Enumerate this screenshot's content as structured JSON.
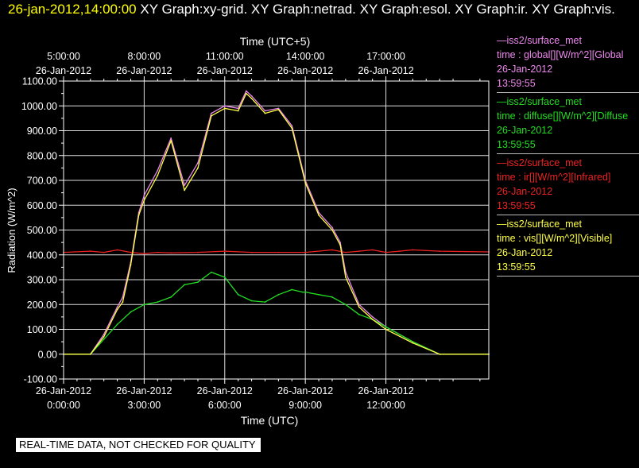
{
  "header": {
    "timestamp": "26-jan-2012,14:00:00",
    "description": "XY Graph:xy-grid.  XY Graph:netrad.  XY Graph:esol.  XY Graph:ir.  XY Graph:vis."
  },
  "footer": {
    "text": "REAL-TIME DATA, NOT CHECKED FOR QUALITY"
  },
  "legend": [
    {
      "title": "—iss2/surface_met",
      "var": "time : global[][W/m^2][Global",
      "date": "26-Jan-2012",
      "time": "13:59:55",
      "color": "#ee88ee"
    },
    {
      "title": "—iss2/surface_met",
      "var": "time : diffuse[][W/m^2][Diffuse",
      "date": "26-Jan-2012",
      "time": "13:59:55",
      "color": "#22dd22"
    },
    {
      "title": "—iss2/surface_met",
      "var": "time : ir[][W/m^2][Infrared]",
      "date": "26-Jan-2012",
      "time": "13:59:55",
      "color": "#ee2222"
    },
    {
      "title": "—iss2/surface_met",
      "var": "time : vis[][W/m^2][Visible]",
      "date": "26-Jan-2012",
      "time": "13:59:55",
      "color": "#ffff44"
    }
  ],
  "chart_data": {
    "type": "line",
    "ylabel": "Radiation (W/m^2)",
    "xlabel": "Time (UTC)",
    "x2label": "Time (UTC+5)",
    "ylim": [
      -100,
      1100
    ],
    "xlim": [
      0,
      15.83
    ],
    "yticks": [
      "-100.00",
      "0.00",
      "100.00",
      "200.00",
      "300.00",
      "400.00",
      "500.00",
      "600.00",
      "700.00",
      "800.00",
      "900.00",
      "1000.00",
      "1100.00"
    ],
    "xticks_bottom": [
      {
        "date": "26-Jan-2012",
        "time": "0:00:00"
      },
      {
        "date": "26-Jan-2012",
        "time": "3:00:00"
      },
      {
        "date": "26-Jan-2012",
        "time": "6:00:00"
      },
      {
        "date": "26-Jan-2012",
        "time": "9:00:00"
      },
      {
        "date": "26-Jan-2012",
        "time": "12:00:00"
      }
    ],
    "xticks_top": [
      {
        "time": "5:00:00",
        "date": "26-Jan-2012"
      },
      {
        "time": "8:00:00",
        "date": "26-Jan-2012"
      },
      {
        "time": "11:00:00",
        "date": "26-Jan-2012"
      },
      {
        "time": "14:00:00",
        "date": "26-Jan-2012"
      },
      {
        "time": "17:00:00",
        "date": "26-Jan-2012"
      }
    ],
    "grid": true,
    "series": [
      {
        "name": "global",
        "color": "#ee88ee",
        "x": [
          0,
          1,
          1.5,
          2,
          2.2,
          2.5,
          2.8,
          3,
          3.5,
          4,
          4.5,
          5,
          5.5,
          6,
          6.5,
          6.8,
          7,
          7.5,
          8,
          8.5,
          9,
          9.5,
          10,
          10.3,
          10.5,
          11,
          11.5,
          12,
          13,
          14,
          15.83
        ],
        "y": [
          0,
          0,
          80,
          190,
          230,
          370,
          570,
          640,
          740,
          870,
          680,
          770,
          970,
          1000,
          990,
          1060,
          1040,
          980,
          990,
          920,
          700,
          570,
          510,
          450,
          330,
          200,
          150,
          110,
          50,
          0,
          0
        ]
      },
      {
        "name": "diffuse",
        "color": "#22dd22",
        "x": [
          0,
          1,
          1.5,
          2,
          2.5,
          3,
          3.5,
          4,
          4.5,
          5,
          5.5,
          6,
          6.5,
          7,
          7.5,
          8,
          8.5,
          8.9,
          9,
          9.5,
          10,
          10.5,
          11,
          11.5,
          12,
          13,
          14,
          15.83
        ],
        "y": [
          0,
          0,
          60,
          120,
          170,
          200,
          210,
          230,
          280,
          290,
          330,
          310,
          240,
          215,
          210,
          240,
          260,
          250,
          250,
          240,
          230,
          200,
          160,
          140,
          110,
          50,
          0,
          0
        ]
      },
      {
        "name": "ir",
        "color": "#ee2222",
        "x": [
          0,
          1,
          1.5,
          2,
          2.5,
          3,
          3.5,
          4,
          5,
          6,
          7,
          8,
          9,
          10,
          10.5,
          11,
          11.5,
          12,
          12.5,
          13,
          14,
          15.83
        ],
        "y": [
          410,
          415,
          410,
          420,
          410,
          405,
          410,
          408,
          410,
          415,
          410,
          410,
          410,
          420,
          410,
          415,
          420,
          410,
          415,
          420,
          415,
          412
        ]
      },
      {
        "name": "vis",
        "color": "#ffff44",
        "x": [
          0,
          1,
          1.5,
          2,
          2.2,
          2.5,
          2.8,
          3,
          3.5,
          4,
          4.5,
          5,
          5.5,
          6,
          6.5,
          6.8,
          7,
          7.5,
          8,
          8.5,
          9,
          9.5,
          10,
          10.3,
          10.5,
          11,
          11.5,
          12,
          13,
          14,
          15.83
        ],
        "y": [
          0,
          0,
          70,
          180,
          210,
          360,
          560,
          620,
          720,
          860,
          660,
          750,
          960,
          990,
          980,
          1050,
          1030,
          970,
          985,
          910,
          690,
          560,
          500,
          440,
          310,
          190,
          140,
          100,
          45,
          0,
          0
        ]
      }
    ]
  }
}
